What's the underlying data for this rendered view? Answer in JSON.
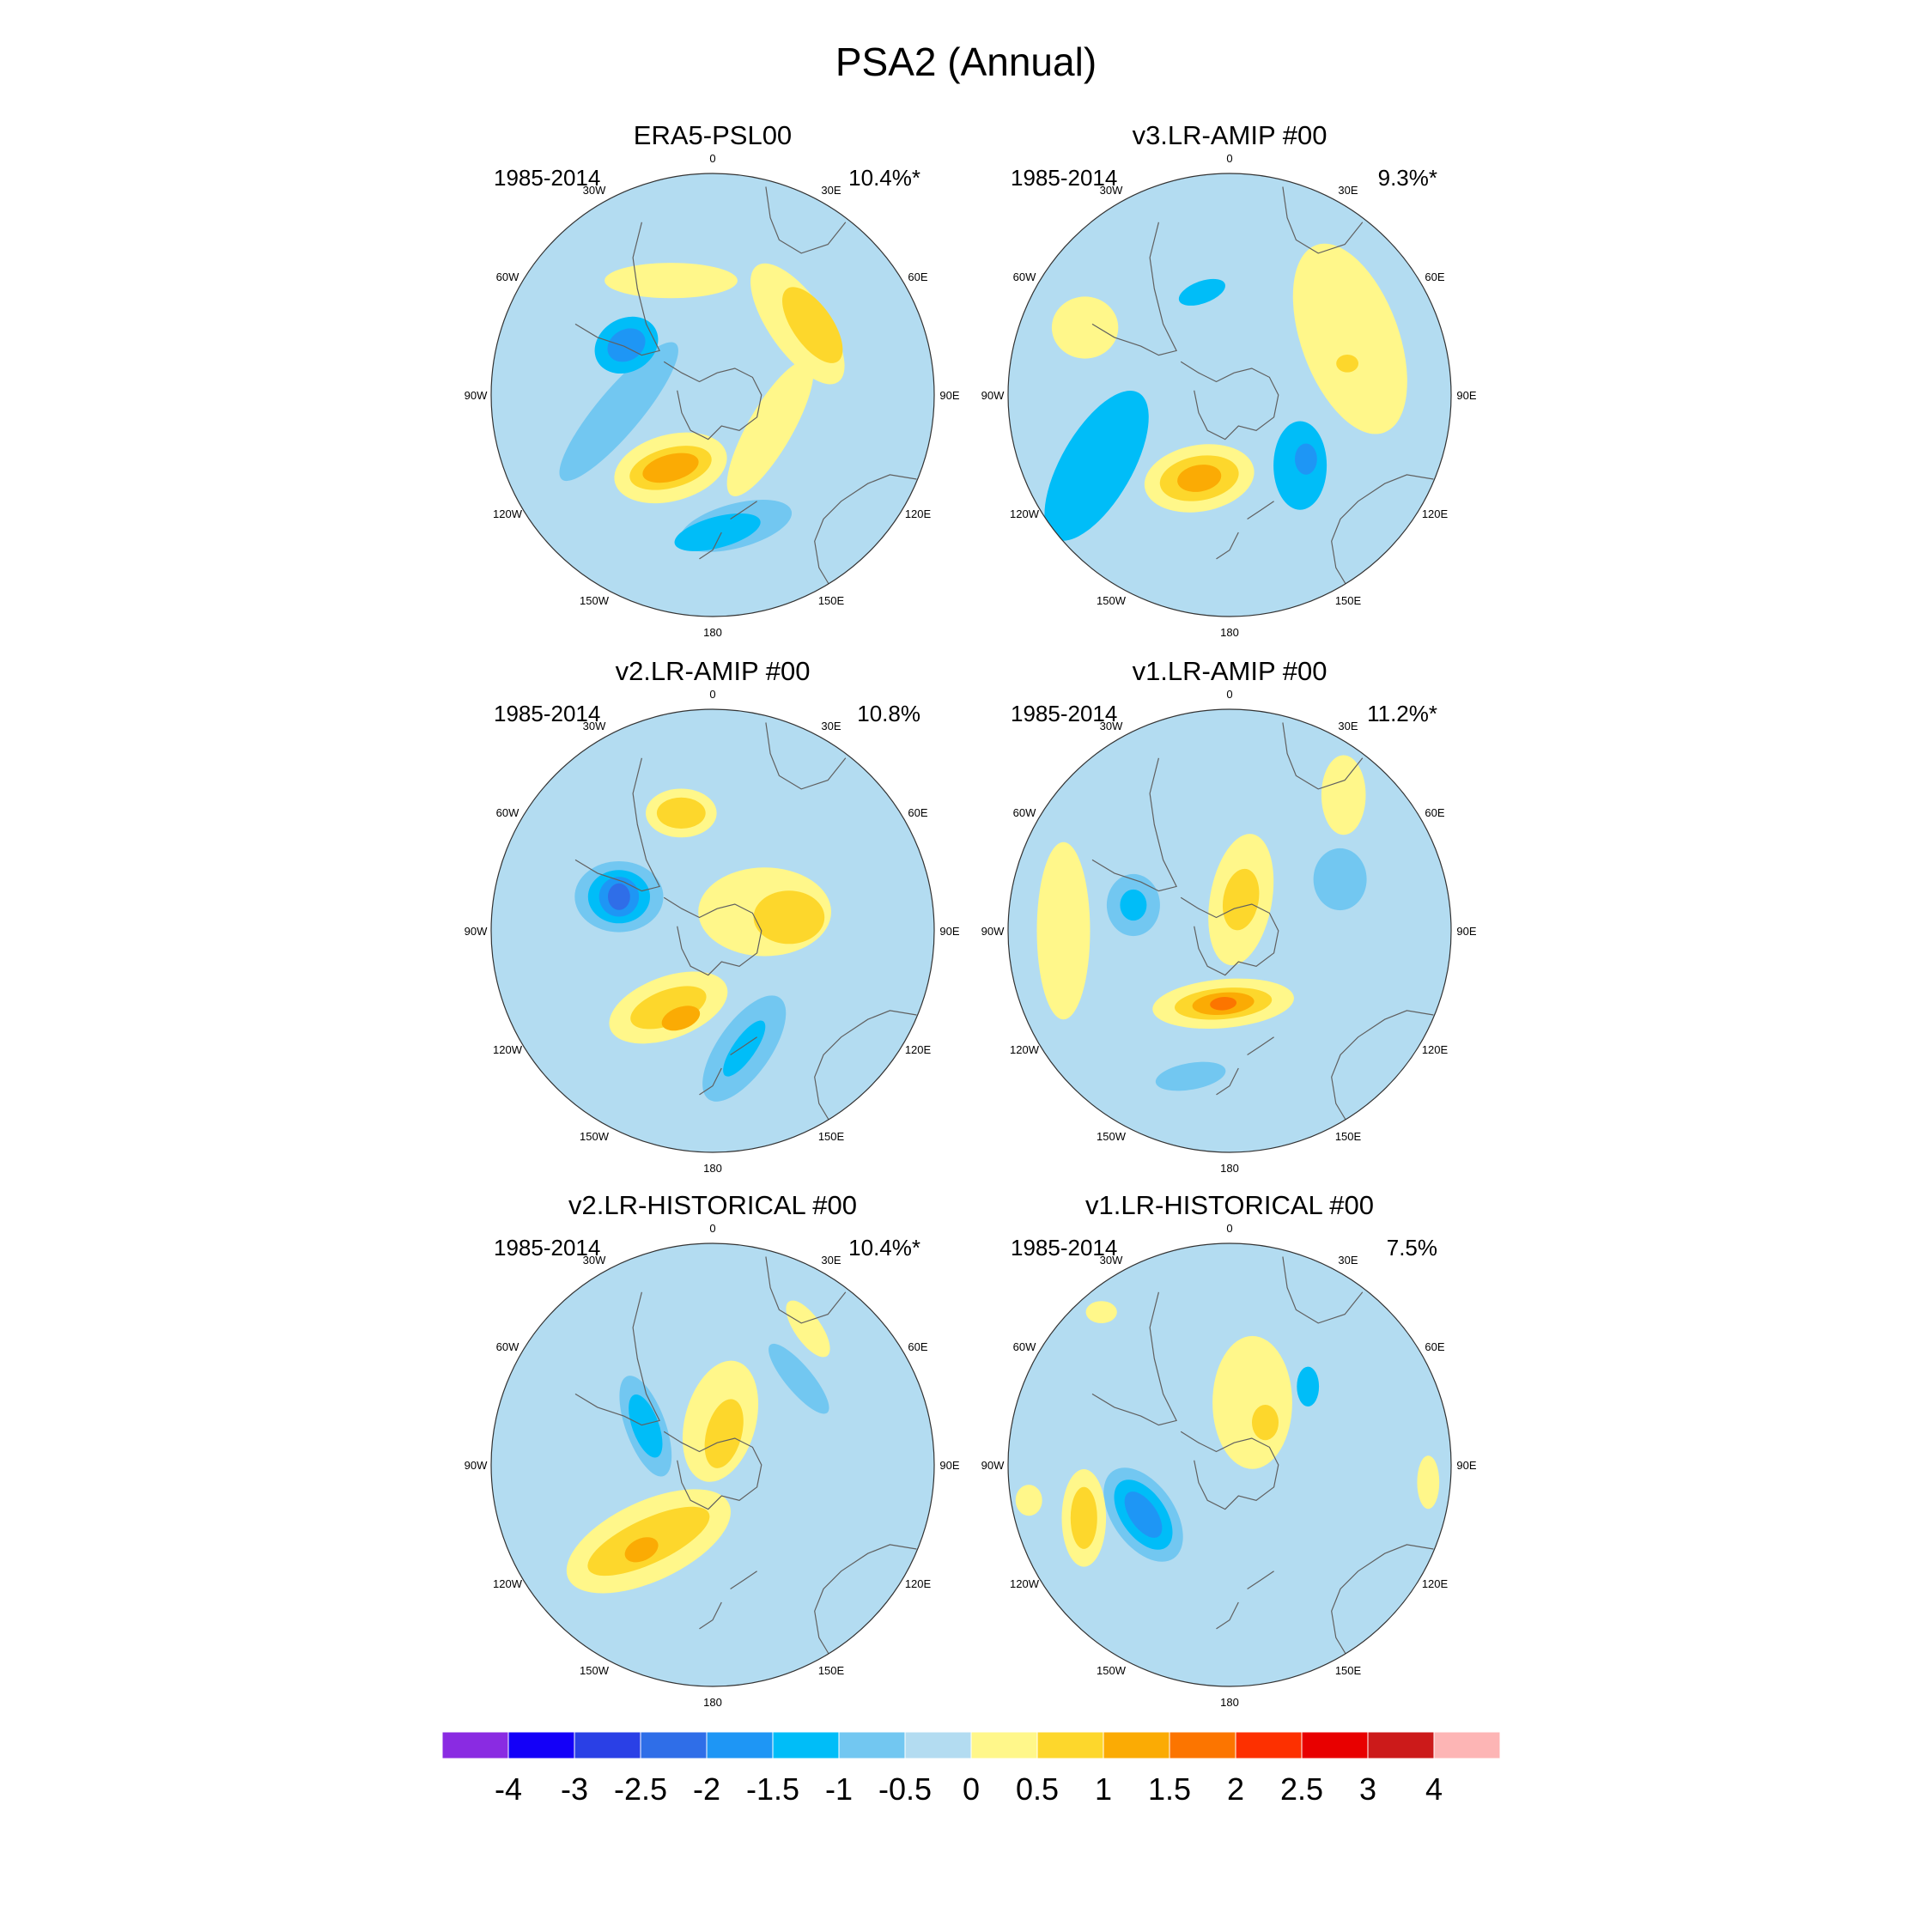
{
  "title": "PSA2 (Annual)",
  "colors": {
    "levels": [
      "#8a2be2",
      "#1400f8",
      "#2a40e6",
      "#2f6ee8",
      "#1e96f5",
      "#00bdf8",
      "#72c7f1",
      "#b3dcf1",
      "#fff78a",
      "#fdd72c",
      "#fbab04",
      "#fc7500",
      "#fd3000",
      "#e80000",
      "#cc1a1a",
      "#fdb5b5"
    ],
    "coast": "#606060",
    "frame": "#333333"
  },
  "chart_data": [
    {
      "type": "contour-map",
      "projection": "south-polar stereographic",
      "title": "ERA5-PSL00",
      "period": "1985-2014",
      "pct_variance": "10.4%*",
      "lon_labels": [
        "0",
        "30E",
        "60E",
        "90E",
        "120E",
        "150E",
        "180",
        "150W",
        "120W",
        "90W",
        "60W",
        "30W"
      ],
      "blobs": [
        {
          "lon": -100,
          "r": 0.43,
          "rx": 0.4,
          "ry": 0.1,
          "rot": -50,
          "v": -0.5
        },
        {
          "lon": 170,
          "r": 0.6,
          "rx": 0.26,
          "ry": 0.1,
          "rot": -15,
          "v": -0.5
        },
        {
          "lon": 178,
          "r": 0.62,
          "rx": 0.2,
          "ry": 0.07,
          "rot": -15,
          "v": -1
        },
        {
          "lon": -60,
          "r": 0.45,
          "rx": 0.15,
          "ry": 0.12,
          "rot": -30,
          "v": -1
        },
        {
          "lon": -60,
          "r": 0.45,
          "rx": 0.09,
          "ry": 0.07,
          "rot": -30,
          "v": -1.5
        },
        {
          "lon": -150,
          "r": 0.38,
          "rx": 0.26,
          "ry": 0.15,
          "rot": -15,
          "v": 0.5
        },
        {
          "lon": -150,
          "r": 0.38,
          "rx": 0.19,
          "ry": 0.09,
          "rot": -15,
          "v": 1
        },
        {
          "lon": -150,
          "r": 0.38,
          "rx": 0.13,
          "ry": 0.06,
          "rot": -15,
          "v": 1.5
        },
        {
          "lon": 50,
          "r": 0.5,
          "rx": 0.13,
          "ry": 0.32,
          "rot": -35,
          "v": 0.5
        },
        {
          "lon": 55,
          "r": 0.55,
          "rx": 0.09,
          "ry": 0.2,
          "rot": -35,
          "v": 1
        },
        {
          "lon": -20,
          "r": 0.55,
          "rx": 0.3,
          "ry": 0.08,
          "rot": 0,
          "v": 0.5
        },
        {
          "lon": 120,
          "r": 0.3,
          "rx": 0.35,
          "ry": 0.1,
          "rot": -60,
          "v": 0.5
        }
      ]
    },
    {
      "type": "contour-map",
      "projection": "south-polar stereographic",
      "title": "v3.LR-AMIP  #00",
      "period": "1985-2014",
      "pct_variance": "9.3%*",
      "lon_labels": [
        "0",
        "30E",
        "60E",
        "90E",
        "120E",
        "150E",
        "180",
        "150W",
        "120W",
        "90W",
        "60W",
        "30W"
      ],
      "blobs": [
        {
          "lon": 65,
          "r": 0.6,
          "rx": 0.22,
          "ry": 0.45,
          "rot": -20,
          "v": 0.5
        },
        {
          "lon": -65,
          "r": 0.72,
          "rx": 0.15,
          "ry": 0.14,
          "rot": 0,
          "v": 0.5
        },
        {
          "lon": -160,
          "r": 0.4,
          "rx": 0.25,
          "ry": 0.15,
          "rot": -10,
          "v": 0.5
        },
        {
          "lon": -160,
          "r": 0.4,
          "rx": 0.18,
          "ry": 0.1,
          "rot": -10,
          "v": 1
        },
        {
          "lon": -160,
          "r": 0.4,
          "rx": 0.1,
          "ry": 0.06,
          "rot": -10,
          "v": 1.5
        },
        {
          "lon": -118,
          "r": 0.68,
          "rx": 0.16,
          "ry": 0.38,
          "rot": 30,
          "v": -1
        },
        {
          "lon": 135,
          "r": 0.45,
          "rx": 0.12,
          "ry": 0.2,
          "rot": 0,
          "v": -1
        },
        {
          "lon": 130,
          "r": 0.45,
          "rx": 0.05,
          "ry": 0.07,
          "rot": 0,
          "v": -1.5
        },
        {
          "lon": -15,
          "r": 0.48,
          "rx": 0.11,
          "ry": 0.05,
          "rot": -20,
          "v": -1
        },
        {
          "lon": 75,
          "r": 0.55,
          "rx": 0.05,
          "ry": 0.04,
          "rot": 0,
          "v": 1
        }
      ]
    },
    {
      "type": "contour-map",
      "projection": "south-polar stereographic",
      "title": "v2.LR-AMIP  #00",
      "period": "1985-2014",
      "pct_variance": "10.8%",
      "lon_labels": [
        "0",
        "30E",
        "60E",
        "90E",
        "120E",
        "150E",
        "180",
        "150W",
        "120W",
        "90W",
        "60W",
        "30W"
      ],
      "blobs": [
        {
          "lon": -70,
          "r": 0.45,
          "rx": 0.2,
          "ry": 0.16,
          "rot": 0,
          "v": -0.5
        },
        {
          "lon": -70,
          "r": 0.45,
          "rx": 0.14,
          "ry": 0.12,
          "rot": 0,
          "v": -1
        },
        {
          "lon": -70,
          "r": 0.45,
          "rx": 0.09,
          "ry": 0.09,
          "rot": 0,
          "v": -1.5
        },
        {
          "lon": -70,
          "r": 0.45,
          "rx": 0.05,
          "ry": 0.06,
          "rot": 0,
          "v": -2
        },
        {
          "lon": 165,
          "r": 0.55,
          "rx": 0.28,
          "ry": 0.12,
          "rot": -55,
          "v": -0.5
        },
        {
          "lon": 165,
          "r": 0.55,
          "rx": 0.15,
          "ry": 0.05,
          "rot": -55,
          "v": -1
        },
        {
          "lon": -15,
          "r": 0.55,
          "rx": 0.16,
          "ry": 0.11,
          "rot": 0,
          "v": 0.5
        },
        {
          "lon": -15,
          "r": 0.55,
          "rx": 0.11,
          "ry": 0.07,
          "rot": 0,
          "v": 1
        },
        {
          "lon": -150,
          "r": 0.4,
          "rx": 0.28,
          "ry": 0.14,
          "rot": -20,
          "v": 0.5
        },
        {
          "lon": -150,
          "r": 0.4,
          "rx": 0.18,
          "ry": 0.08,
          "rot": -20,
          "v": 1
        },
        {
          "lon": -160,
          "r": 0.42,
          "rx": 0.09,
          "ry": 0.05,
          "rot": -20,
          "v": 1.5
        },
        {
          "lon": 70,
          "r": 0.25,
          "rx": 0.3,
          "ry": 0.2,
          "rot": 0,
          "v": 0.5
        },
        {
          "lon": 80,
          "r": 0.35,
          "rx": 0.16,
          "ry": 0.12,
          "rot": 0,
          "v": 1
        }
      ]
    },
    {
      "type": "contour-map",
      "projection": "south-polar stereographic",
      "title": "v1.LR-AMIP  #00",
      "period": "1985-2014",
      "pct_variance": "11.2%*",
      "lon_labels": [
        "0",
        "30E",
        "60E",
        "90E",
        "120E",
        "150E",
        "180",
        "150W",
        "120W",
        "90W",
        "60W",
        "30W"
      ],
      "blobs": [
        {
          "lon": -175,
          "r": 0.33,
          "rx": 0.32,
          "ry": 0.11,
          "rot": -5,
          "v": 0.5
        },
        {
          "lon": -175,
          "r": 0.33,
          "rx": 0.22,
          "ry": 0.07,
          "rot": -5,
          "v": 1
        },
        {
          "lon": -175,
          "r": 0.33,
          "rx": 0.14,
          "ry": 0.05,
          "rot": -5,
          "v": 1.5
        },
        {
          "lon": -175,
          "r": 0.33,
          "rx": 0.06,
          "ry": 0.03,
          "rot": -5,
          "v": 2
        },
        {
          "lon": -75,
          "r": 0.45,
          "rx": 0.12,
          "ry": 0.14,
          "rot": 0,
          "v": -0.5
        },
        {
          "lon": -75,
          "r": 0.45,
          "rx": 0.06,
          "ry": 0.07,
          "rot": 0,
          "v": -1
        },
        {
          "lon": -165,
          "r": 0.68,
          "rx": 0.16,
          "ry": 0.06,
          "rot": -10,
          "v": -0.5
        },
        {
          "lon": 65,
          "r": 0.55,
          "rx": 0.12,
          "ry": 0.14,
          "rot": 0,
          "v": -0.5
        },
        {
          "lon": 20,
          "r": 0.15,
          "rx": 0.14,
          "ry": 0.3,
          "rot": 10,
          "v": 0.5
        },
        {
          "lon": 20,
          "r": 0.15,
          "rx": 0.08,
          "ry": 0.14,
          "rot": 10,
          "v": 1
        },
        {
          "lon": -90,
          "r": 0.75,
          "rx": 0.12,
          "ry": 0.4,
          "rot": 0,
          "v": 0.5
        },
        {
          "lon": 40,
          "r": 0.8,
          "rx": 0.1,
          "ry": 0.18,
          "rot": 0,
          "v": 0.5
        }
      ]
    },
    {
      "type": "contour-map",
      "projection": "south-polar stereographic",
      "title": "v2.LR-HISTORICAL  #00",
      "period": "1985-2014",
      "pct_variance": "10.4%*",
      "lon_labels": [
        "0",
        "30E",
        "60E",
        "90E",
        "120E",
        "150E",
        "180",
        "150W",
        "120W",
        "90W",
        "60W",
        "30W"
      ],
      "blobs": [
        {
          "lon": -140,
          "r": 0.45,
          "rx": 0.4,
          "ry": 0.18,
          "rot": -25,
          "v": 0.5
        },
        {
          "lon": -140,
          "r": 0.45,
          "rx": 0.3,
          "ry": 0.1,
          "rot": -25,
          "v": 1
        },
        {
          "lon": -140,
          "r": 0.5,
          "rx": 0.08,
          "ry": 0.05,
          "rot": -25,
          "v": 1.5
        },
        {
          "lon": -60,
          "r": 0.35,
          "rx": 0.09,
          "ry": 0.24,
          "rot": -20,
          "v": -0.5
        },
        {
          "lon": -60,
          "r": 0.35,
          "rx": 0.06,
          "ry": 0.15,
          "rot": -20,
          "v": -1
        },
        {
          "lon": 45,
          "r": 0.55,
          "rx": 0.06,
          "ry": 0.2,
          "rot": -40,
          "v": -0.5
        },
        {
          "lon": 10,
          "r": 0.2,
          "rx": 0.16,
          "ry": 0.28,
          "rot": 15,
          "v": 0.5
        },
        {
          "lon": 20,
          "r": 0.15,
          "rx": 0.08,
          "ry": 0.16,
          "rot": 15,
          "v": 1
        },
        {
          "lon": 35,
          "r": 0.75,
          "rx": 0.06,
          "ry": 0.15,
          "rot": -35,
          "v": 0.5
        }
      ]
    },
    {
      "type": "contour-map",
      "projection": "south-polar stereographic",
      "title": "v1.LR-HISTORICAL  #00",
      "period": "1985-2014",
      "pct_variance": "7.5%",
      "lon_labels": [
        "0",
        "30E",
        "60E",
        "90E",
        "120E",
        "150E",
        "180",
        "150W",
        "120W",
        "90W",
        "60W",
        "30W"
      ],
      "blobs": [
        {
          "lon": -120,
          "r": 0.45,
          "rx": 0.14,
          "ry": 0.24,
          "rot": -35,
          "v": -0.5
        },
        {
          "lon": -120,
          "r": 0.45,
          "rx": 0.1,
          "ry": 0.18,
          "rot": -35,
          "v": -1
        },
        {
          "lon": -120,
          "r": 0.45,
          "rx": 0.06,
          "ry": 0.12,
          "rot": -35,
          "v": -1.5
        },
        {
          "lon": -110,
          "r": 0.7,
          "rx": 0.1,
          "ry": 0.22,
          "rot": 0,
          "v": 0.5
        },
        {
          "lon": -110,
          "r": 0.7,
          "rx": 0.06,
          "ry": 0.14,
          "rot": 0,
          "v": 1
        },
        {
          "lon": 20,
          "r": 0.3,
          "rx": 0.18,
          "ry": 0.3,
          "rot": 0,
          "v": 0.5
        },
        {
          "lon": 40,
          "r": 0.25,
          "rx": 0.06,
          "ry": 0.08,
          "rot": 0,
          "v": 1
        },
        {
          "lon": 45,
          "r": 0.5,
          "rx": 0.05,
          "ry": 0.09,
          "rot": 0,
          "v": -1
        },
        {
          "lon": -40,
          "r": 0.9,
          "rx": 0.07,
          "ry": 0.05,
          "rot": 0,
          "v": 0.5
        },
        {
          "lon": 95,
          "r": 0.9,
          "rx": 0.05,
          "ry": 0.12,
          "rot": 0,
          "v": 0.5
        },
        {
          "lon": -100,
          "r": 0.92,
          "rx": 0.06,
          "ry": 0.07,
          "rot": 0,
          "v": 0.5
        }
      ]
    }
  ],
  "colorbar": {
    "labels": [
      "-4",
      "-3",
      "-2.5",
      "-2",
      "-1.5",
      "-1",
      "-0.5",
      "0",
      "0.5",
      "1",
      "1.5",
      "2",
      "2.5",
      "3",
      "4"
    ]
  }
}
